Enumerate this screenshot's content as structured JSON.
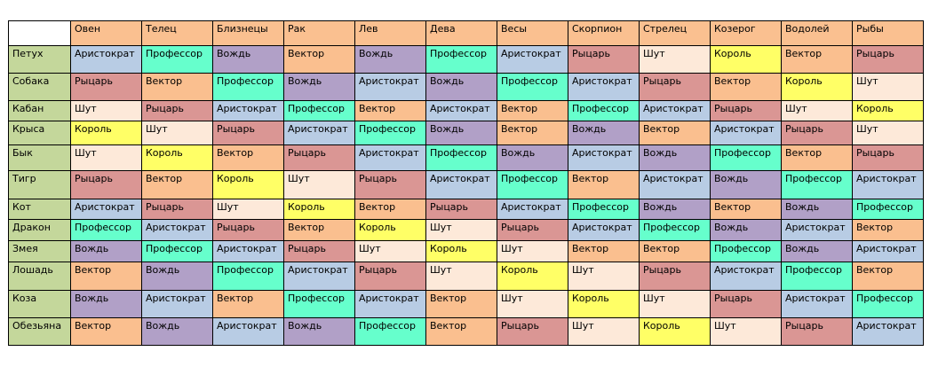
{
  "colors": {
    "sign_header": "#fac090",
    "animal_header": "#c4d79b",
    "Аристократ": "#b8cce4",
    "Профессор": "#66ffcc",
    "Вождь": "#b1a0c7",
    "Вектор": "#fabf8f",
    "Рыцарь": "#da9694",
    "Шут": "#fde9d9",
    "Король": "#ffff66"
  },
  "signs": [
    "Овен",
    "Телец",
    "Близнецы",
    "Рак",
    "Лев",
    "Дева",
    "Весы",
    "Скорпион",
    "Стрелец",
    "Козерог",
    "Водолей",
    "Рыбы"
  ],
  "rows": [
    {
      "animal": "Петух",
      "cells": [
        "Аристократ",
        "Профессор",
        "Вождь",
        "Вектор",
        "Вождь",
        "Профессор",
        "Аристократ",
        "Рыцарь",
        "Шут",
        "Король",
        "Вектор",
        "Рыцарь"
      ]
    },
    {
      "animal": "Собака",
      "cells": [
        "Рыцарь",
        "Вектор",
        "Профессор",
        "Вождь",
        "Аристократ",
        "Вождь",
        "Профессор",
        "Аристократ",
        "Рыцарь",
        "Вектор",
        "Король",
        "Шут"
      ]
    },
    {
      "animal": "Кабан",
      "cells": [
        "Шут",
        "Рыцарь",
        "Аристократ",
        "Профессор",
        "Вектор",
        "Аристократ",
        "Вектор",
        "Профессор",
        "Аристократ",
        "Рыцарь",
        "Шут",
        "Король"
      ]
    },
    {
      "animal": "Крыса",
      "cells": [
        "Король",
        "Шут",
        "Рыцарь",
        "Аристократ",
        "Профессор",
        "Вождь",
        "Вектор",
        "Вождь",
        "Вектор",
        "Аристократ",
        "Рыцарь",
        "Шут"
      ]
    },
    {
      "animal": "Бык",
      "cells": [
        "Шут",
        "Король",
        "Вектор",
        "Рыцарь",
        "Аристократ",
        "Профессор",
        "Вождь",
        "Аристократ",
        "Вождь",
        "Профессор",
        "Вектор",
        "Рыцарь"
      ]
    },
    {
      "animal": "Тигр",
      "cells": [
        "Рыцарь",
        "Вектор",
        "Король",
        "Шут",
        "Рыцарь",
        "Аристократ",
        "Профессор",
        "Вектор",
        "Аристократ",
        "Вождь",
        "Профессор",
        "Аристократ"
      ]
    },
    {
      "animal": "Кот",
      "cells": [
        "Аристократ",
        "Рыцарь",
        "Шут",
        "Король",
        "Вектор",
        "Рыцарь",
        "Аристократ",
        "Профессор",
        "Вождь",
        "Вектор",
        "Вождь",
        "Профессор"
      ]
    },
    {
      "animal": "Дракон",
      "cells": [
        "Профессор",
        "Аристократ",
        "Рыцарь",
        "Вектор",
        "Король",
        "Шут",
        "Рыцарь",
        "Аристократ",
        "Профессор",
        "Вождь",
        "Аристократ",
        "Вектор"
      ]
    },
    {
      "animal": "Змея",
      "cells": [
        "Вождь",
        "Профессор",
        "Аристократ",
        "Рыцарь",
        "Шут",
        "Король",
        "Шут",
        "Вектор",
        "Вектор",
        "Профессор",
        "Вождь",
        "Аристократ"
      ]
    },
    {
      "animal": "Лошадь",
      "cells": [
        "Вектор",
        "Вождь",
        "Профессор",
        "Аристократ",
        "Рыцарь",
        "Шут",
        "Король",
        "Шут",
        "Рыцарь",
        "Аристократ",
        "Профессор",
        "Вектор"
      ]
    },
    {
      "animal": "Коза",
      "cells": [
        "Вождь",
        "Аристократ",
        "Вектор",
        "Профессор",
        "Аристократ",
        "Вектор",
        "Шут",
        "Король",
        "Шут",
        "Рыцарь",
        "Аристократ",
        "Профессор"
      ]
    },
    {
      "animal": "Обезьяна",
      "cells": [
        "Вектор",
        "Вождь",
        "Аристократ",
        "Вождь",
        "Профессор",
        "Вектор",
        "Рыцарь",
        "Шут",
        "Король",
        "Шут",
        "Рыцарь",
        "Аристократ"
      ]
    }
  ]
}
